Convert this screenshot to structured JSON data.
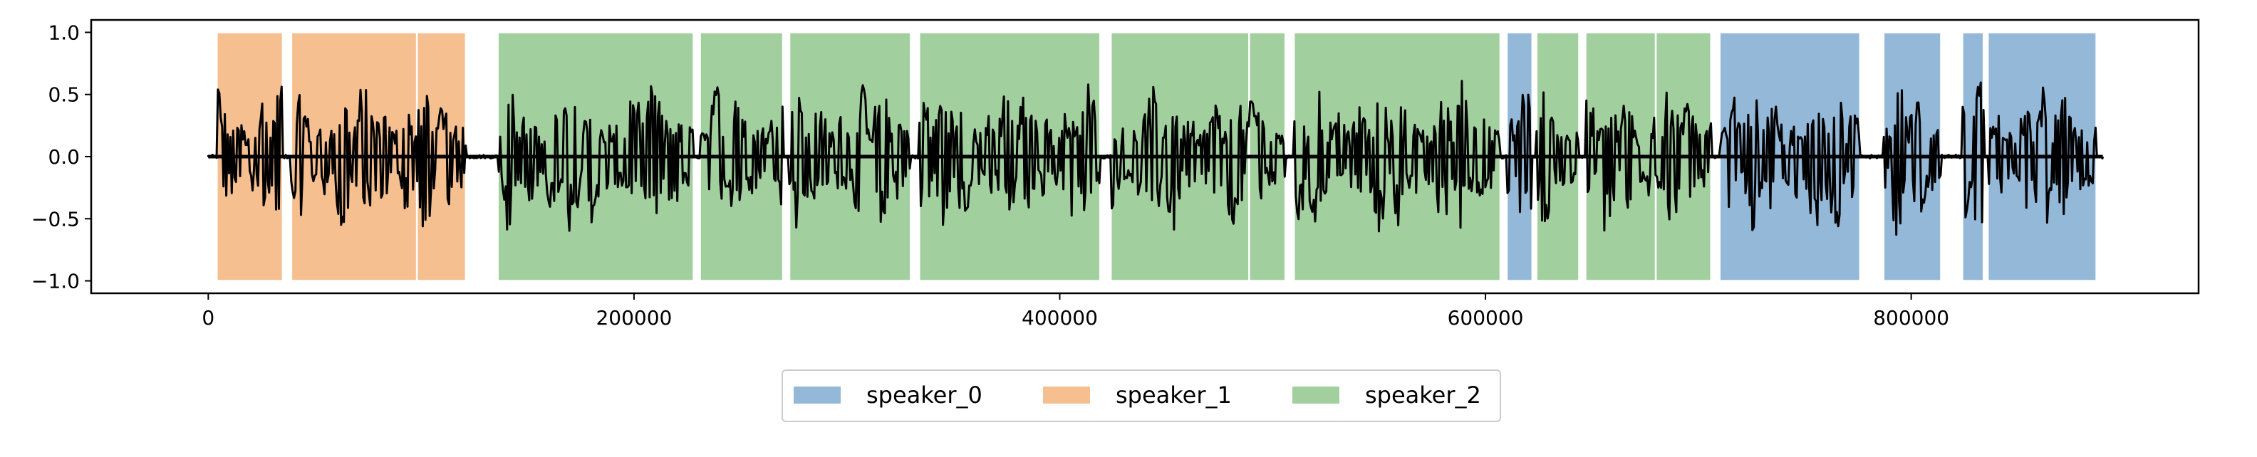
{
  "chart_data": {
    "type": "area",
    "title": "",
    "xlabel": "",
    "ylabel": "",
    "xlim": [
      -55000,
      935000
    ],
    "ylim": [
      -1.1,
      1.1
    ],
    "xticks": [
      0,
      200000,
      400000,
      600000,
      800000
    ],
    "xtick_labels": [
      "0",
      "200000",
      "400000",
      "600000",
      "800000"
    ],
    "yticks": [
      1.0,
      0.5,
      0.0,
      -0.5,
      -1.0
    ],
    "ytick_labels": [
      "1.0",
      "0.5",
      "0.0",
      "−0.5",
      "−1.0"
    ],
    "grid": false,
    "legend_position": "bottom-center, outside plot",
    "speakers": [
      {
        "name": "speaker_0",
        "color": "#94b8d8"
      },
      {
        "name": "speaker_1",
        "color": "#f5bf90"
      },
      {
        "name": "speaker_2",
        "color": "#a2cf9e"
      }
    ],
    "segments": [
      {
        "speaker": "speaker_1",
        "start": 4000,
        "end": 35000
      },
      {
        "speaker": "speaker_1",
        "start": 39000,
        "end": 98000
      },
      {
        "speaker": "speaker_1",
        "start": 98000,
        "end": 121000
      },
      {
        "speaker": "speaker_2",
        "start": 136000,
        "end": 228000
      },
      {
        "speaker": "speaker_2",
        "start": 231000,
        "end": 270000
      },
      {
        "speaker": "speaker_2",
        "start": 273000,
        "end": 330000
      },
      {
        "speaker": "speaker_2",
        "start": 334000,
        "end": 419000
      },
      {
        "speaker": "speaker_2",
        "start": 424000,
        "end": 489000
      },
      {
        "speaker": "speaker_2",
        "start": 489000,
        "end": 506000
      },
      {
        "speaker": "speaker_2",
        "start": 510000,
        "end": 607000
      },
      {
        "speaker": "speaker_0",
        "start": 610000,
        "end": 622000
      },
      {
        "speaker": "speaker_2",
        "start": 624000,
        "end": 644000
      },
      {
        "speaker": "speaker_2",
        "start": 647000,
        "end": 680000
      },
      {
        "speaker": "speaker_2",
        "start": 680000,
        "end": 706000
      },
      {
        "speaker": "speaker_0",
        "start": 710000,
        "end": 776000
      },
      {
        "speaker": "speaker_0",
        "start": 787000,
        "end": 814000
      },
      {
        "speaker": "speaker_0",
        "start": 824000,
        "end": 834000
      },
      {
        "speaker": "speaker_0",
        "start": 836000,
        "end": 887000
      }
    ],
    "waveform": {
      "color": "#000000",
      "start": 0,
      "end": 890000,
      "speech_amplitude_range": [
        -0.65,
        0.62
      ],
      "silence_amplitude": 0.0
    }
  }
}
